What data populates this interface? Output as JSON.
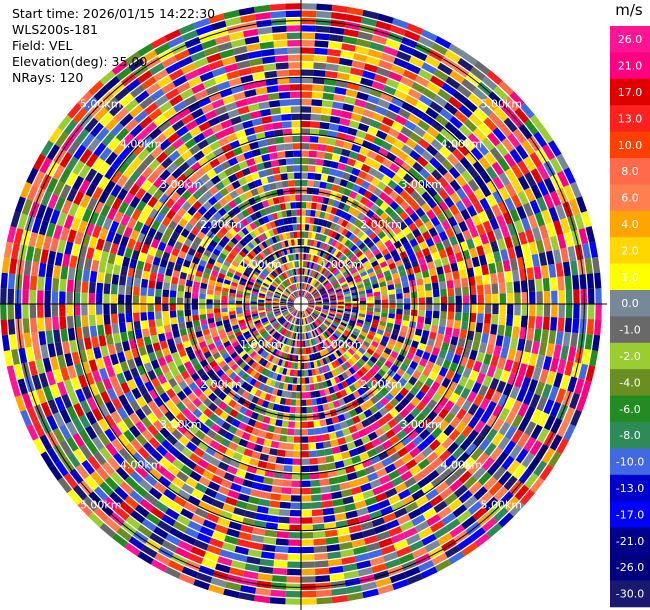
{
  "header": {
    "start_time": "Start time: 2026/01/15 14:22:30",
    "instrument": "WLS200s-181",
    "field": "Field: VEL",
    "elevation": "Elevation(deg): 35.00",
    "nrays": "NRays: 120"
  },
  "chart_data": {
    "type": "heatmap",
    "projection": "polar-ppi",
    "field": "VEL",
    "rays": 120,
    "range_rings_km": [
      1,
      2,
      3,
      4,
      5
    ],
    "range_ring_label": "km",
    "ring_labels": [
      "1.00km",
      "2.00km",
      "3.00km",
      "4.00km",
      "5.00km"
    ],
    "max_range_km": 5.4,
    "colorbar": {
      "unit": "m/s",
      "ticks": [
        "26.0",
        "21.0",
        "17.0",
        "13.0",
        "10.0",
        "8.0",
        "6.0",
        "4.0",
        "2.0",
        "1.0",
        "0.0",
        "-1.0",
        "-2.0",
        "-4.0",
        "-6.0",
        "-8.0",
        "-10.0",
        "-13.0",
        "-17.0",
        "-21.0",
        "-26.0",
        "-30.0"
      ],
      "colors": [
        "#ff1493",
        "#ff0080",
        "#e00000",
        "#ff2020",
        "#ff4000",
        "#ff6a4a",
        "#ff7f50",
        "#ffa500",
        "#ffd700",
        "#ffff00",
        "#778899",
        "#696969",
        "#9acd32",
        "#6b8e23",
        "#228b22",
        "#2e8b57",
        "#4169e1",
        "#0000cd",
        "#0000ff",
        "#00008b",
        "#000080",
        "#191970"
      ]
    }
  }
}
